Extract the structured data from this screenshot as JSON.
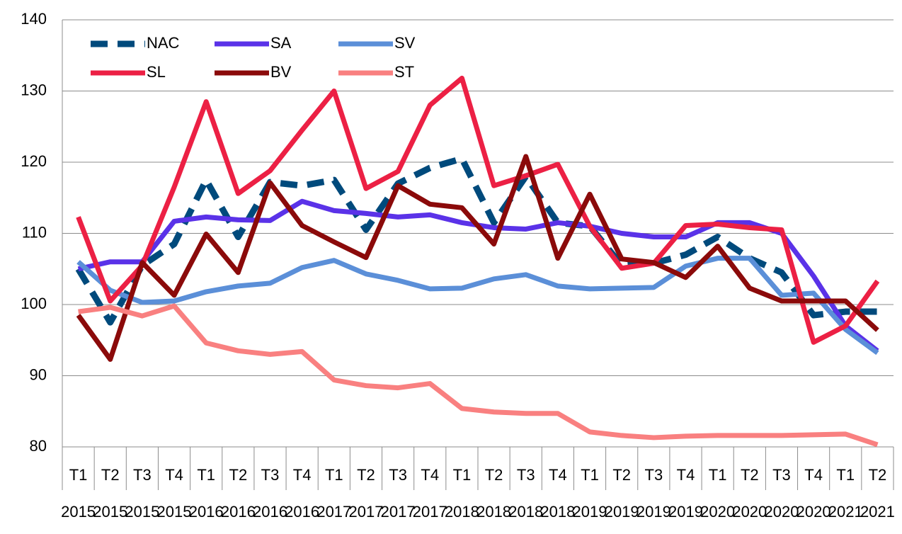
{
  "chart_data": {
    "type": "line",
    "categories": [
      "T1",
      "T2",
      "T3",
      "T4",
      "T1",
      "T2",
      "T3",
      "T4",
      "T1",
      "T2",
      "T3",
      "T4",
      "T1",
      "T2",
      "T3",
      "T4",
      "T1",
      "T2",
      "T3",
      "T4",
      "T1",
      "T2",
      "T3",
      "T4",
      "T1",
      "T2"
    ],
    "category_years": [
      "2015",
      "2015",
      "2015",
      "2015",
      "2016",
      "2016",
      "2016",
      "2016",
      "2017",
      "2017",
      "2017",
      "2017",
      "2018",
      "2018",
      "2018",
      "2018",
      "2019",
      "2019",
      "2019",
      "2019",
      "2020",
      "2020",
      "2020",
      "2020",
      "2021",
      "2021"
    ],
    "series": [
      {
        "name": "NAC",
        "color": "#004a7c",
        "line_style": "dashed",
        "values": [
          105,
          97.5,
          105.5,
          108.5,
          117.5,
          109.5,
          117.2,
          116.7,
          117.5,
          110.5,
          117,
          119.2,
          120.5,
          111.5,
          118,
          111.5,
          111,
          105.5,
          105.8,
          107,
          109.5,
          106.5,
          104.5,
          98.5,
          99,
          99
        ]
      },
      {
        "name": "SA",
        "color": "#5a32e8",
        "line_style": "solid",
        "values": [
          105,
          106,
          106,
          111.7,
          112.3,
          111.9,
          111.8,
          114.5,
          113.2,
          112.8,
          112.3,
          112.6,
          111.5,
          110.8,
          110.6,
          111.5,
          111,
          110,
          109.5,
          109.5,
          111.5,
          111.5,
          110,
          104,
          97,
          93.5
        ]
      },
      {
        "name": "SV",
        "color": "#5b8fd8",
        "line_style": "solid",
        "values": [
          106,
          102,
          100.3,
          100.5,
          101.8,
          102.6,
          103,
          105.2,
          106.2,
          104.3,
          103.4,
          102.2,
          102.3,
          103.6,
          104.2,
          102.6,
          102.2,
          102.3,
          102.4,
          105.4,
          106.5,
          106.5,
          101.3,
          101.6,
          96.5,
          93.2
        ]
      },
      {
        "name": "SL",
        "color": "#ec2044",
        "line_style": "solid",
        "values": [
          112.3,
          100.5,
          105.5,
          116.5,
          128.5,
          115.6,
          118.8,
          124.5,
          130,
          116.3,
          118.7,
          128,
          131.8,
          116.7,
          118.1,
          119.7,
          111,
          105.1,
          105.8,
          111.1,
          111.3,
          110.8,
          110.5,
          94.7,
          97,
          103.3
        ]
      },
      {
        "name": "BV",
        "color": "#8b0a0a",
        "line_style": "solid",
        "values": [
          98.5,
          92.3,
          105.9,
          101.3,
          109.9,
          104.5,
          117.1,
          111.1,
          108.8,
          106.6,
          116.7,
          114.1,
          113.6,
          108.5,
          120.8,
          106.5,
          115.5,
          106.4,
          105.9,
          103.8,
          108.2,
          102.3,
          100.5,
          100.5,
          100.5,
          96.4
        ]
      },
      {
        "name": "ST",
        "color": "#f98080",
        "line_style": "solid",
        "values": [
          99,
          99.6,
          98.4,
          99.8,
          94.6,
          93.5,
          93,
          93.4,
          89.4,
          88.6,
          88.3,
          88.9,
          85.4,
          84.9,
          84.7,
          84.7,
          82.1,
          81.6,
          81.3,
          81.5,
          81.6,
          81.6,
          81.6,
          81.7,
          81.8,
          80.3
        ]
      }
    ],
    "ylim": [
      80,
      140
    ],
    "yticks": [
      80,
      90,
      100,
      110,
      120,
      130,
      140
    ],
    "grid": true,
    "legend": "upper left"
  }
}
